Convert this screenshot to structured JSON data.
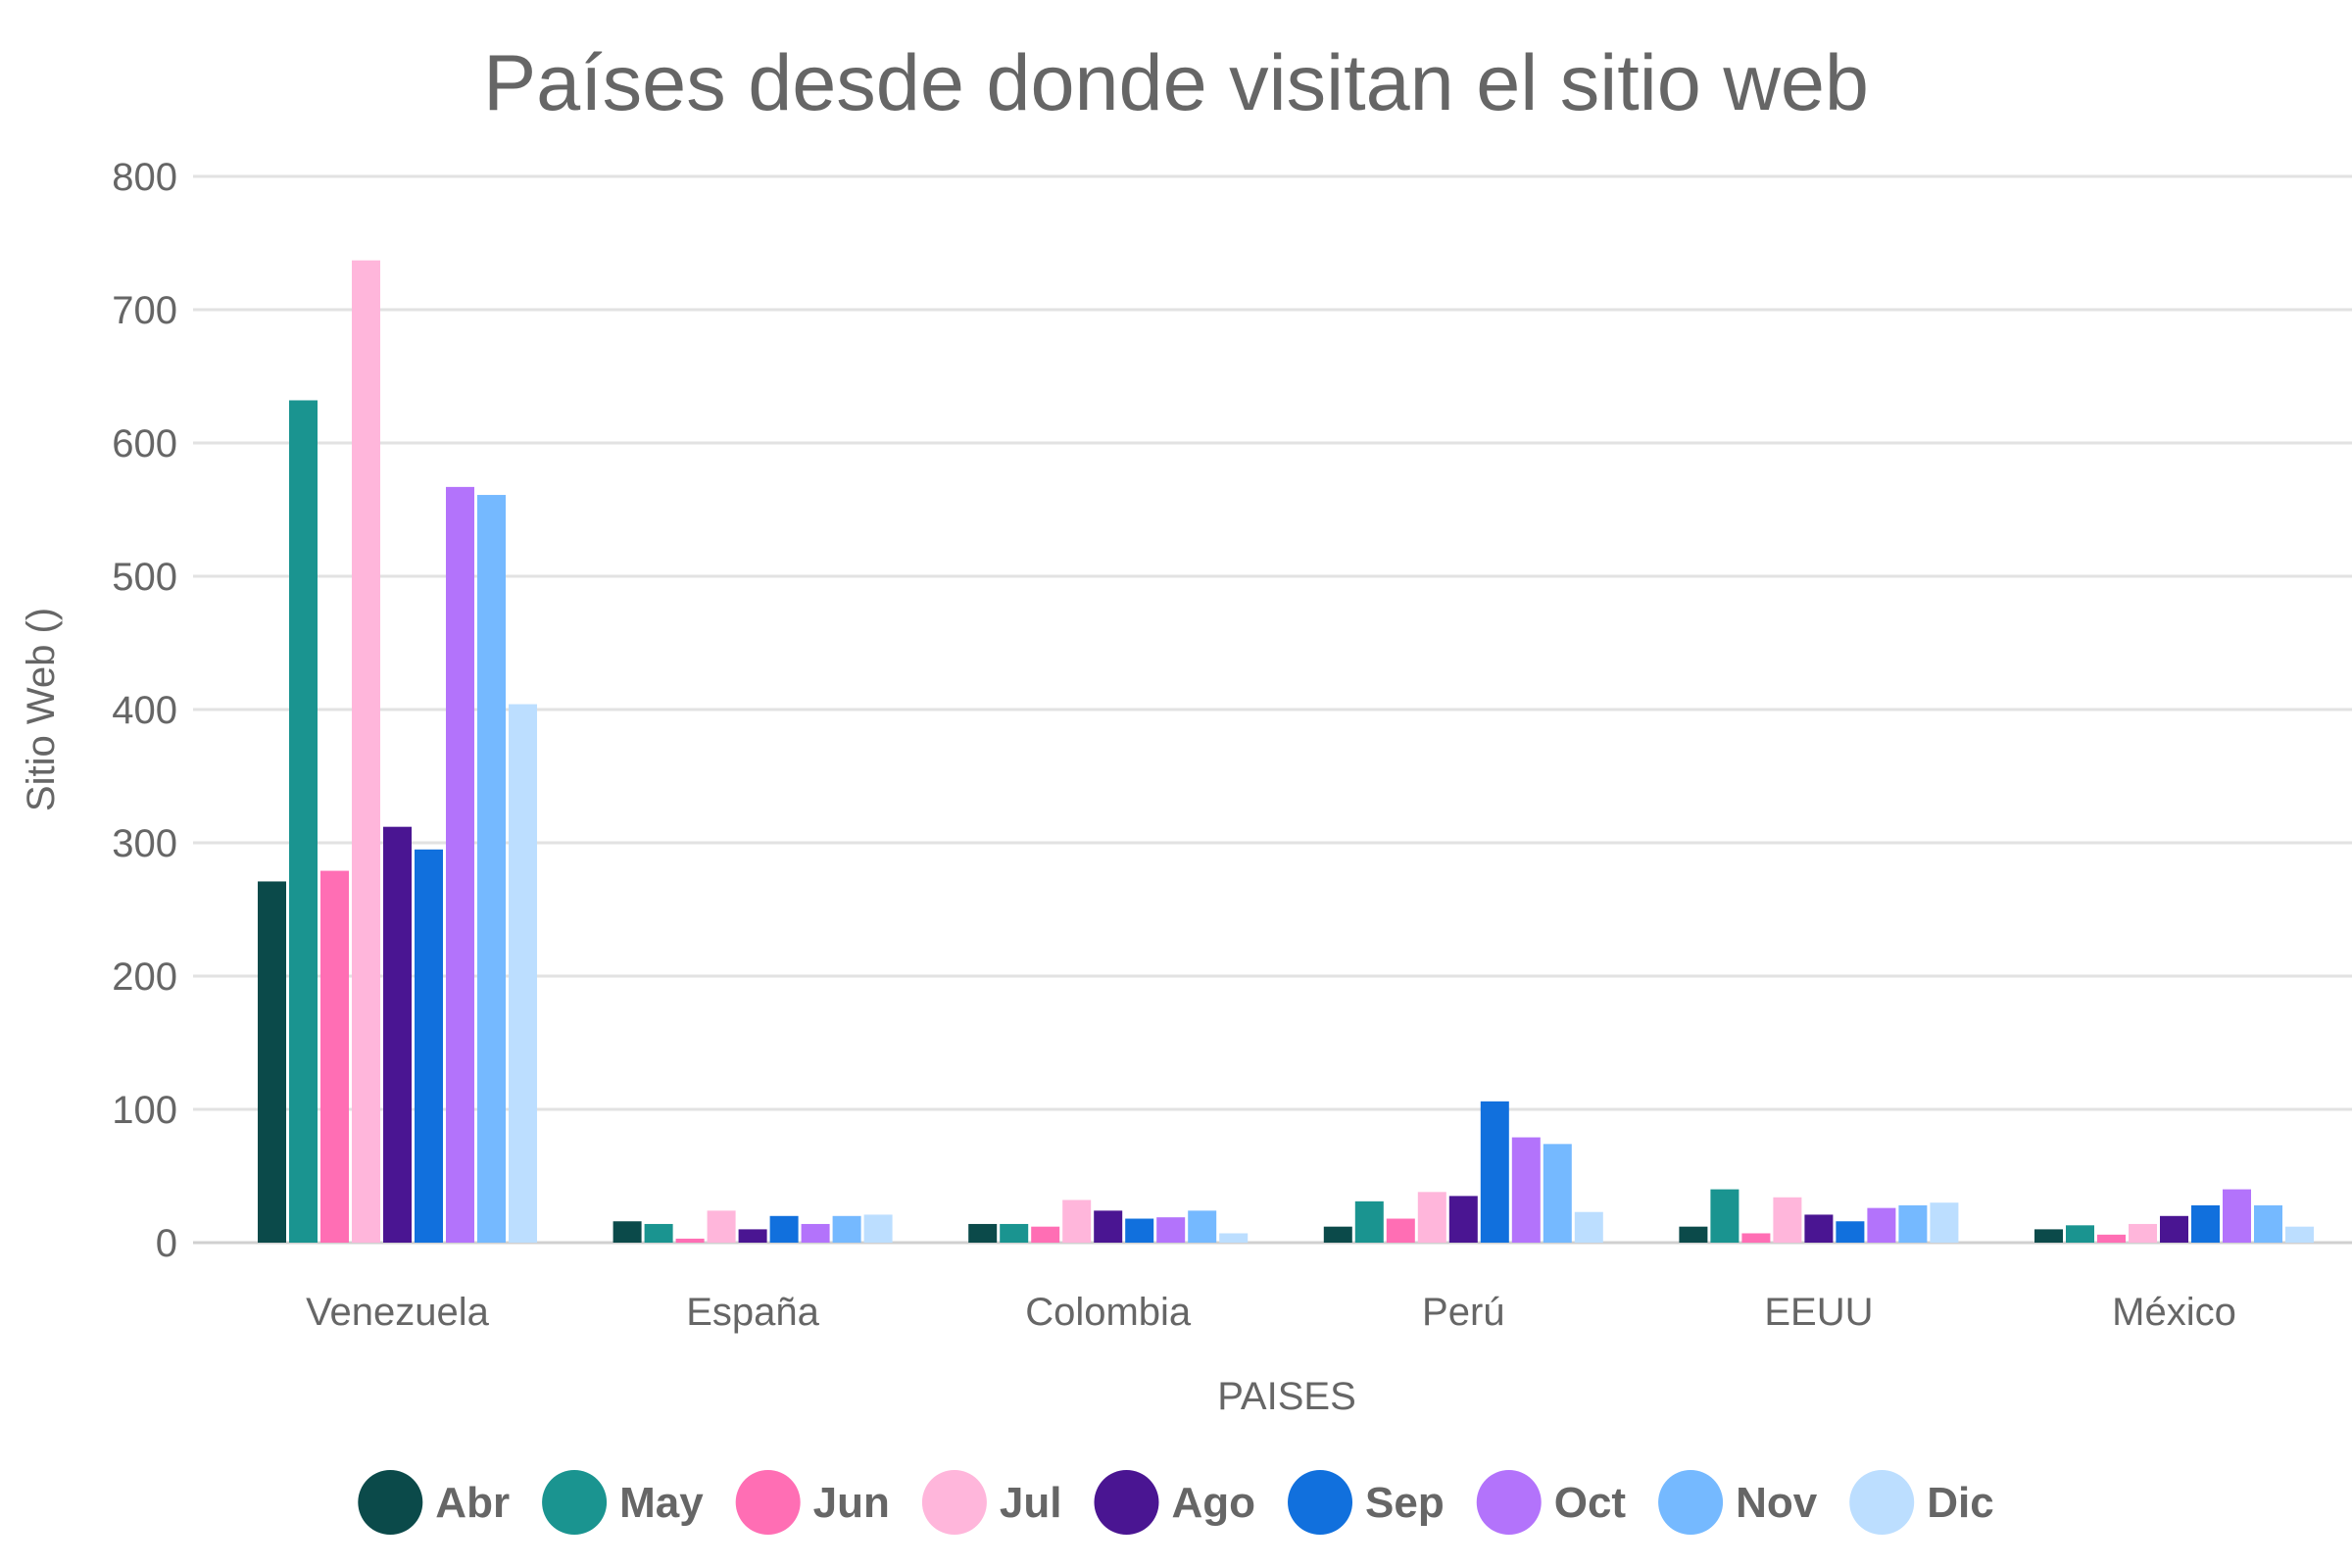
{
  "chart_data": {
    "type": "bar",
    "title": "Países desde donde visitan el sitio web",
    "xlabel": "PAISES",
    "ylabel": "Sitio Web ()",
    "ylim": [
      0,
      800
    ],
    "yticks": [
      0,
      100,
      200,
      300,
      400,
      500,
      600,
      700,
      800
    ],
    "grid": true,
    "legend_position": "bottom",
    "categories": [
      "Venezuela",
      "España",
      "Colombia",
      "Perú",
      "EEUU",
      "México"
    ],
    "series": [
      {
        "name": "Abr",
        "color": "#0b4a4a",
        "values": [
          271,
          16,
          14,
          12,
          12,
          10
        ]
      },
      {
        "name": "May",
        "color": "#1a9490",
        "values": [
          632,
          14,
          14,
          31,
          40,
          13
        ]
      },
      {
        "name": "Jun",
        "color": "#ff6eb4",
        "values": [
          279,
          3,
          12,
          18,
          7,
          6
        ]
      },
      {
        "name": "Jul",
        "color": "#ffb6db",
        "values": [
          737,
          24,
          32,
          38,
          34,
          14
        ]
      },
      {
        "name": "Ago",
        "color": "#4a1592",
        "values": [
          312,
          10,
          24,
          35,
          21,
          20
        ]
      },
      {
        "name": "Sep",
        "color": "#1170dd",
        "values": [
          295,
          20,
          18,
          106,
          16,
          28
        ]
      },
      {
        "name": "Oct",
        "color": "#b373fb",
        "values": [
          567,
          14,
          19,
          79,
          26,
          40
        ]
      },
      {
        "name": "Nov",
        "color": "#75b9ff",
        "values": [
          561,
          20,
          24,
          74,
          28,
          28
        ]
      },
      {
        "name": "Dic",
        "color": "#bcdeff",
        "values": [
          404,
          21,
          7,
          23,
          30,
          12
        ]
      }
    ]
  }
}
